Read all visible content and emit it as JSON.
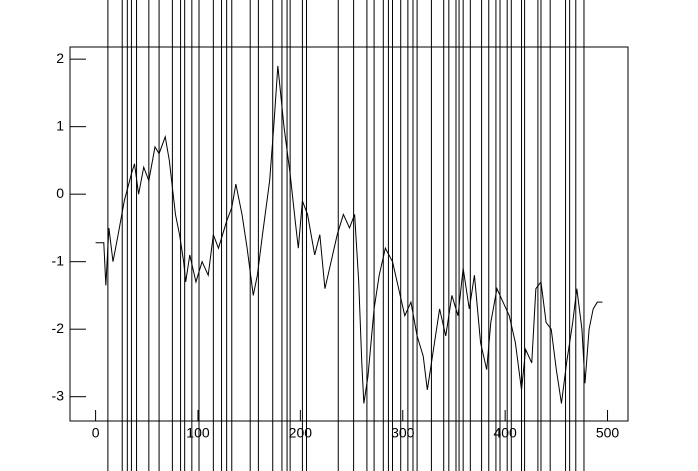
{
  "chart_data": {
    "type": "line",
    "x": [
      0,
      8,
      10,
      13,
      17,
      22,
      28,
      35,
      38,
      42,
      47,
      52,
      58,
      62,
      68,
      72,
      78,
      82,
      86,
      88,
      92,
      98,
      104,
      110,
      115,
      120,
      128,
      133,
      137,
      143,
      148,
      154,
      158,
      163,
      170,
      174,
      178,
      184,
      190,
      195,
      198,
      202,
      207,
      214,
      219,
      224,
      230,
      236,
      242,
      248,
      253,
      257,
      260,
      262,
      266,
      272,
      277,
      283,
      290,
      296,
      302,
      308,
      314,
      320,
      324,
      330,
      336,
      342,
      348,
      354,
      359,
      365,
      370,
      376,
      382,
      386,
      392,
      398,
      404,
      410,
      416,
      420,
      426,
      430,
      435,
      440,
      445,
      450,
      455,
      460,
      466,
      470,
      475,
      478,
      482,
      486,
      490,
      495
    ],
    "values": [
      -0.72,
      -0.72,
      -1.35,
      -0.5,
      -1.0,
      -0.6,
      -0.1,
      0.3,
      0.45,
      0.0,
      0.4,
      0.2,
      0.7,
      0.6,
      0.85,
      0.5,
      -0.3,
      -0.6,
      -1.0,
      -1.3,
      -0.9,
      -1.3,
      -1.0,
      -1.2,
      -0.6,
      -0.8,
      -0.4,
      -0.2,
      0.15,
      -0.3,
      -0.8,
      -1.5,
      -1.2,
      -0.6,
      0.2,
      1.0,
      1.9,
      1.0,
      0.3,
      -0.4,
      -0.8,
      -0.1,
      -0.3,
      -0.9,
      -0.6,
      -1.4,
      -1.0,
      -0.6,
      -0.3,
      -0.5,
      -0.3,
      -1.3,
      -2.5,
      -3.1,
      -2.7,
      -1.7,
      -1.2,
      -0.8,
      -1.0,
      -1.4,
      -1.8,
      -1.6,
      -2.1,
      -2.4,
      -2.9,
      -2.3,
      -1.7,
      -2.1,
      -1.5,
      -1.8,
      -1.1,
      -1.7,
      -1.2,
      -2.2,
      -2.6,
      -1.9,
      -1.4,
      -1.6,
      -1.8,
      -2.2,
      -2.9,
      -2.3,
      -2.5,
      -1.4,
      -1.3,
      -1.9,
      -2.0,
      -2.6,
      -3.1,
      -2.5,
      -1.9,
      -1.4,
      -2.0,
      -2.8,
      -2.0,
      -1.7,
      -1.6,
      -1.6
    ],
    "color": "#000000",
    "vlines": [
      12,
      26,
      31,
      35,
      40,
      52,
      62,
      75,
      83,
      87,
      94,
      101,
      115,
      123,
      128,
      133,
      151,
      159,
      173,
      182,
      187,
      190,
      202,
      206,
      237,
      252,
      265,
      272,
      281,
      286,
      290,
      298,
      305,
      310,
      314,
      328,
      340,
      345,
      352,
      355,
      359,
      366,
      377,
      384,
      391,
      395,
      402,
      406,
      416,
      419,
      432,
      435,
      444,
      459,
      463,
      469,
      477
    ],
    "xlim": [
      -25,
      520
    ],
    "ylim": [
      -3.36,
      2.18
    ],
    "xticks": [
      0,
      100,
      200,
      300,
      400,
      500
    ],
    "yticks": [
      -3,
      -2,
      -1,
      0,
      1,
      2
    ]
  }
}
